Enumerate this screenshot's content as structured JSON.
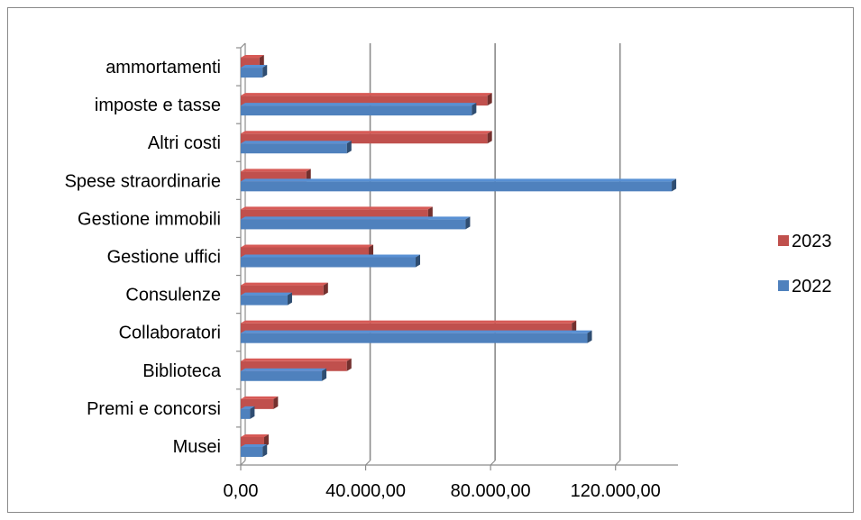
{
  "chart_data": {
    "type": "bar",
    "orientation": "horizontal",
    "categories": [
      "Musei",
      "Premi e concorsi",
      "Biblioteca",
      "Collaboratori",
      "Consulenze",
      "Gestione uffici",
      "Gestione immobili",
      "Spese straordinarie",
      "Altri costi",
      "imposte e tasse",
      "ammortamenti"
    ],
    "series": [
      {
        "name": "2022",
        "color": "#4f81bd",
        "values": [
          7000,
          3000,
          26000,
          111000,
          15000,
          56000,
          72000,
          138000,
          34000,
          74000,
          7000
        ]
      },
      {
        "name": "2023",
        "color": "#c0504d",
        "values": [
          7500,
          10500,
          34000,
          106000,
          26500,
          41000,
          60000,
          21000,
          79000,
          79000,
          6000
        ]
      }
    ],
    "xlim": [
      0,
      140000
    ],
    "xticks": [
      0,
      40000,
      80000,
      120000
    ],
    "xtick_labels": [
      "0,00",
      "40.000,00",
      "80.000,00",
      "120.000,00"
    ],
    "grid": "vertical",
    "legend": "right",
    "legend_order": [
      "2023",
      "2022"
    ]
  }
}
